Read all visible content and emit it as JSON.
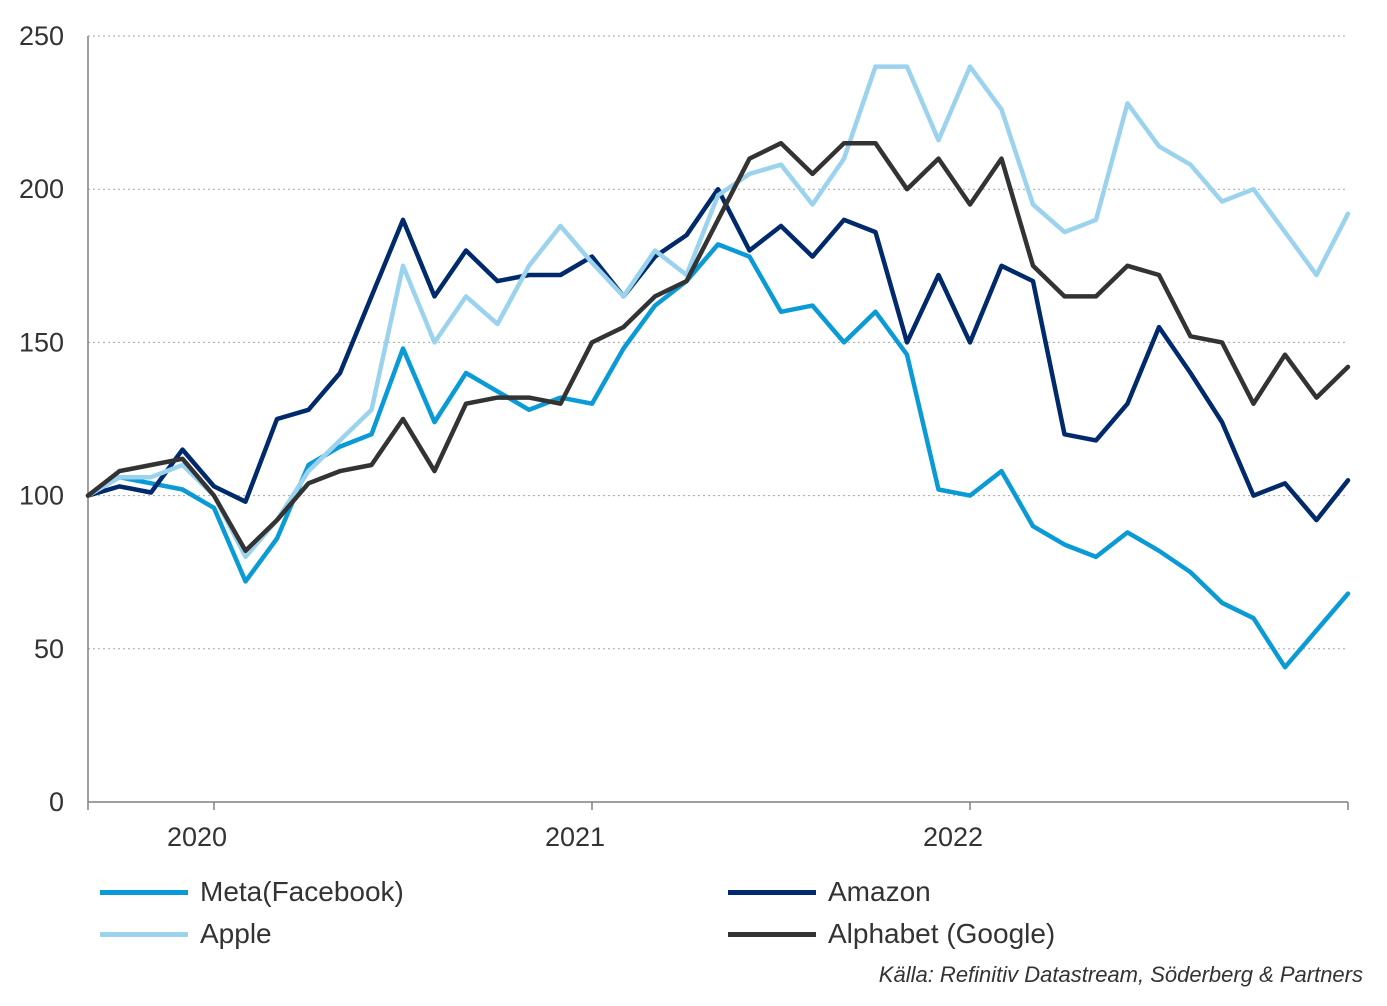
{
  "chart_data": {
    "type": "line",
    "title": "",
    "xlabel": "",
    "ylabel": "",
    "ylim": [
      0,
      250
    ],
    "yticks": [
      0,
      50,
      100,
      150,
      200,
      250
    ],
    "yticklabels": [
      "0",
      "50",
      "100",
      "150",
      "200",
      "250"
    ],
    "xticklabels": [
      "2020",
      "2021",
      "2022"
    ],
    "grid": "horizontal dotted",
    "legend_placement": "bottom, two columns",
    "source": "Källa: Refinitiv Datastream, Söderberg & Partners",
    "x": [
      "2019-09",
      "2019-10",
      "2019-11",
      "2019-12",
      "2020-01",
      "2020-02",
      "2020-03",
      "2020-04",
      "2020-05",
      "2020-06",
      "2020-07",
      "2020-08",
      "2020-09",
      "2020-10",
      "2020-11",
      "2020-12",
      "2021-01",
      "2021-02",
      "2021-03",
      "2021-04",
      "2021-05",
      "2021-06",
      "2021-07",
      "2021-08",
      "2021-09",
      "2021-10",
      "2021-11",
      "2021-12",
      "2022-01",
      "2022-02",
      "2022-03",
      "2022-04",
      "2022-05",
      "2022-06",
      "2022-07",
      "2022-08",
      "2022-09",
      "2022-10",
      "2022-11",
      "2022-12",
      "2023-01"
    ],
    "series": [
      {
        "name": "Meta(Facebook)",
        "color": "#0a9bd7",
        "values": [
          100,
          106,
          104,
          102,
          96,
          72,
          86,
          110,
          116,
          120,
          148,
          124,
          140,
          134,
          128,
          132,
          130,
          148,
          162,
          170,
          182,
          178,
          160,
          162,
          150,
          160,
          146,
          102,
          100,
          108,
          90,
          84,
          80,
          88,
          82,
          75,
          65,
          60,
          44,
          56,
          68
        ]
      },
      {
        "name": "Amazon",
        "color": "#002a6c",
        "values": [
          100,
          103,
          101,
          115,
          103,
          98,
          125,
          128,
          140,
          165,
          190,
          165,
          180,
          170,
          172,
          172,
          178,
          165,
          178,
          185,
          200,
          180,
          188,
          178,
          190,
          186,
          150,
          172,
          150,
          175,
          170,
          120,
          118,
          130,
          155,
          140,
          124,
          100,
          104,
          92,
          105
        ]
      },
      {
        "name": "Apple",
        "color": "#9bd3ee",
        "values": [
          100,
          106,
          106,
          110,
          100,
          80,
          92,
          108,
          118,
          128,
          175,
          150,
          165,
          156,
          175,
          188,
          176,
          165,
          180,
          172,
          198,
          205,
          208,
          195,
          210,
          240,
          240,
          216,
          240,
          226,
          195,
          186,
          190,
          228,
          214,
          208,
          196,
          200,
          186,
          172,
          192
        ]
      },
      {
        "name": "Alphabet (Google)",
        "color": "#333333",
        "values": [
          100,
          108,
          110,
          112,
          100,
          82,
          92,
          104,
          108,
          110,
          125,
          108,
          130,
          132,
          132,
          130,
          150,
          155,
          165,
          170,
          190,
          210,
          215,
          205,
          215,
          215,
          200,
          210,
          195,
          210,
          175,
          165,
          165,
          175,
          172,
          152,
          150,
          130,
          146,
          132,
          142
        ]
      }
    ]
  }
}
